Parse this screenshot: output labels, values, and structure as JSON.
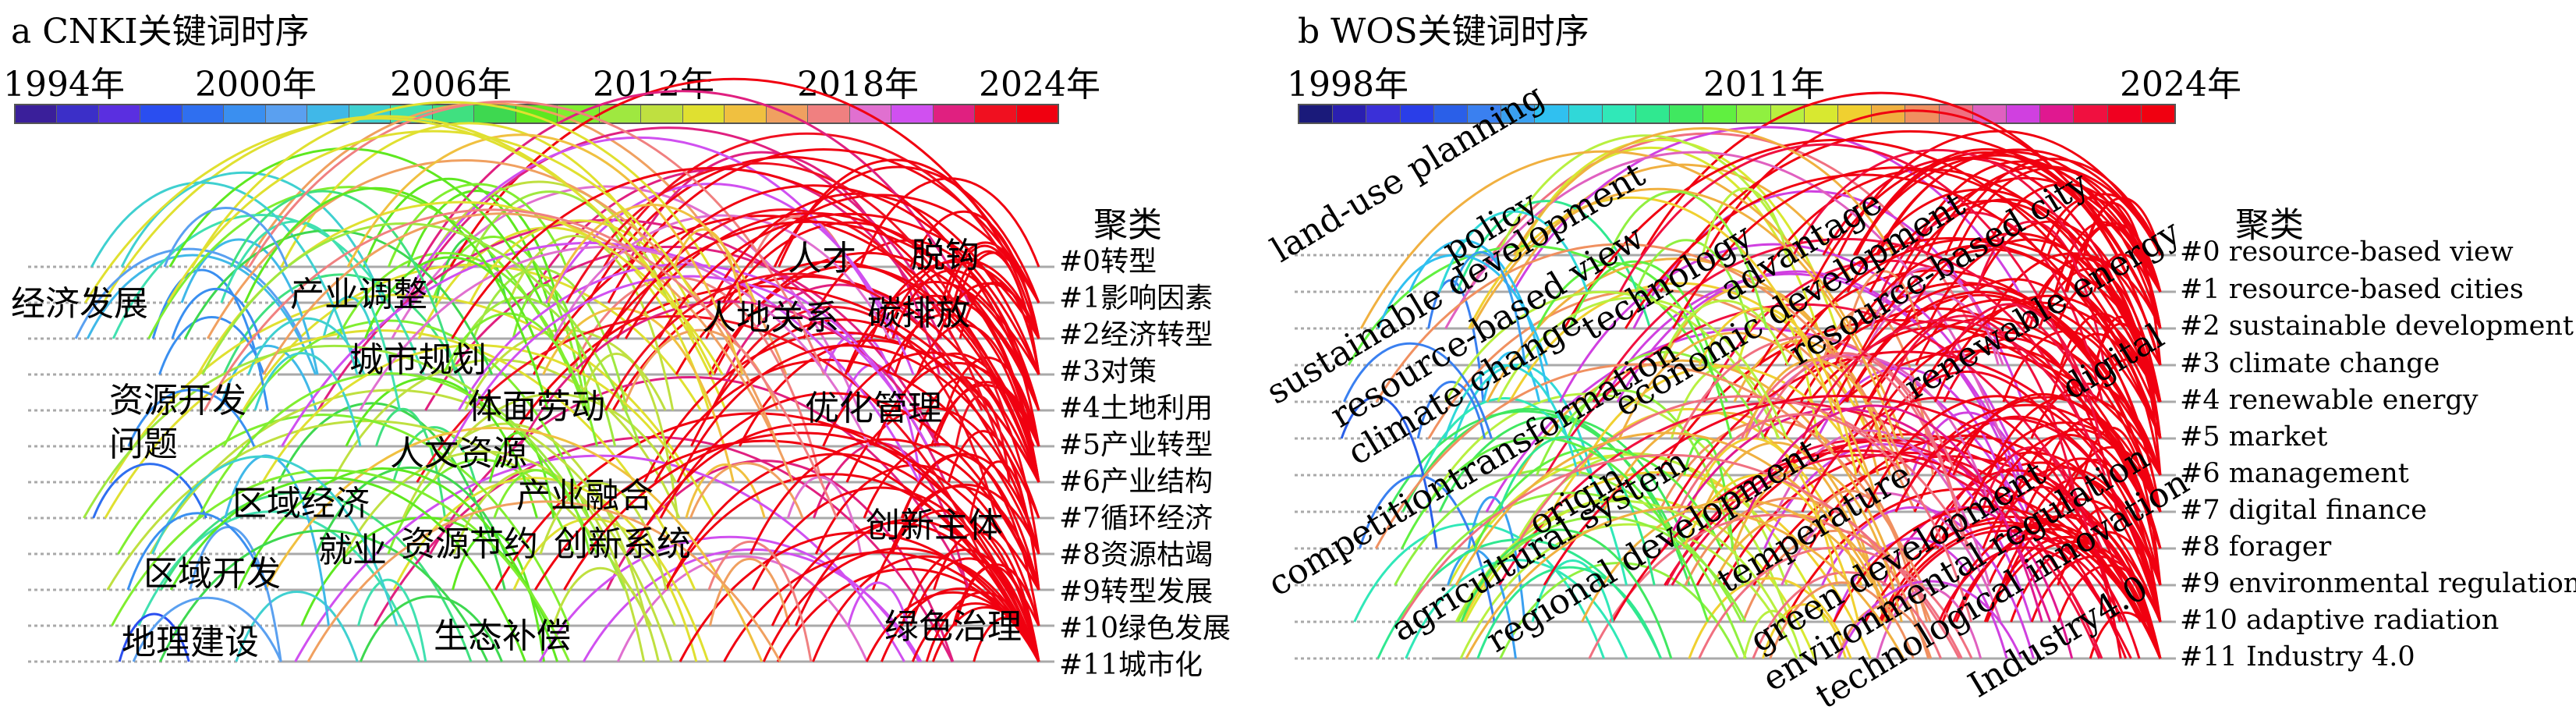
{
  "panel_a": {
    "title": "a  CNKI关键词时序",
    "year_labels": [
      "1994年",
      "2000年",
      "2006年",
      "2012年",
      "2018年",
      "2024年"
    ],
    "year_range": [
      1994,
      2024
    ],
    "cluster_header": "聚类",
    "clusters": [
      "#0转型",
      "#1影响因素",
      "#2经济转型",
      "#3对策",
      "#4土地利用",
      "#5产业转型",
      "#6产业结构",
      "#7循环经济",
      "#8资源枯竭",
      "#9转型发展",
      "#10绿色发展",
      "#11城市化"
    ],
    "keywords": [
      "经济发展",
      "产业调整",
      "人才",
      "脱钩",
      "人地关系",
      "碳排放",
      "城市规划",
      "资源开发",
      "问题",
      "体面劳动",
      "优化管理",
      "人文资源",
      "区域经济",
      "产业融合",
      "就业",
      "资源节约",
      "创新系统",
      "创新主体",
      "区域开发",
      "地理建设",
      "生态补偿",
      "绿色治理"
    ]
  },
  "panel_b": {
    "title": "b  WOS关键词时序",
    "year_labels": [
      "1998年",
      "2011年",
      "2024年"
    ],
    "year_range": [
      1998,
      2024
    ],
    "cluster_header": "聚类",
    "clusters": [
      "#0 resource-based view",
      "#1 resource-based cities",
      "#2 sustainable development",
      "#3 climate change",
      "#4 renewable energy",
      "#5 market",
      "#6 management",
      "#7 digital finance",
      "#8 forager",
      "#9 environmental regulation",
      "#10 adaptive radiation",
      "#11 Industry 4.0"
    ],
    "keywords": [
      "land-use planning",
      "policy",
      "sustainable development",
      "resource-based view",
      "climate change",
      "technology",
      "advantage",
      "economic development",
      "resource-based city",
      "renewable energy",
      "digital",
      "competition",
      "transformation",
      "origin",
      "agricultural system",
      "regional development",
      "temperature",
      "green development",
      "environmental regulation",
      "technological innovation",
      "Industry4.0"
    ]
  },
  "colors": {
    "scale_a": [
      "#3a1f9a",
      "#3b2fc8",
      "#5a2fe0",
      "#2a4ef0",
      "#2f6ff0",
      "#3a8ff0",
      "#5aa0f0",
      "#40b8e8",
      "#3fd0d0",
      "#40e0b0",
      "#40e080",
      "#3ed850",
      "#5ee820",
      "#80ee30",
      "#9fe840",
      "#bfe040",
      "#e0e030",
      "#f0c040",
      "#f0a060",
      "#f08080",
      "#e070d0",
      "#d050f0",
      "#e02080",
      "#f01020",
      "#f00010"
    ],
    "scale_b": [
      "#1a1a7a",
      "#2a1fb0",
      "#3a30d8",
      "#2a3ee8",
      "#2a5fe8",
      "#3a80f0",
      "#3aa0f0",
      "#30c0f0",
      "#30d8d8",
      "#30e8b8",
      "#30e890",
      "#40e860",
      "#60f040",
      "#90f040",
      "#b8f040",
      "#d8e830",
      "#f0d030",
      "#f0b040",
      "#f09060",
      "#f07080",
      "#e060c0",
      "#d040e0",
      "#e01890",
      "#f01040",
      "#f00020",
      "#f00010"
    ],
    "gridline": "#a9a9a9"
  }
}
